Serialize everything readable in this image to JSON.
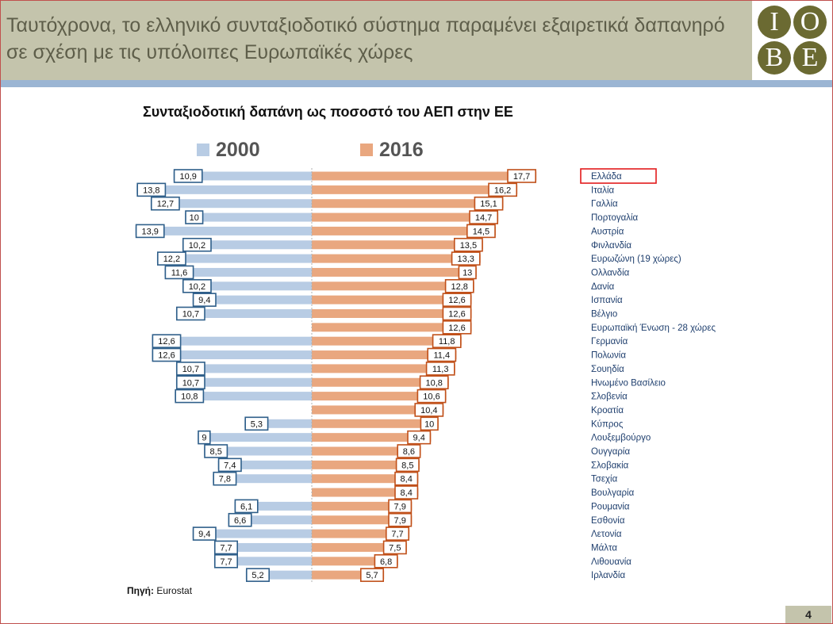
{
  "header": {
    "title": "Ταυτόχρονα, το ελληνικό συνταξιοδοτικό σύστημα παραμένει εξαιρετικά δαπανηρό σε σχέση με τις υπόλοιπες Ευρωπαϊκές χώρες",
    "logo_letters": [
      "I",
      "O",
      "B",
      "E"
    ]
  },
  "chart_data": {
    "type": "bar",
    "title": "Συνταξιοδοτική δαπάνη ως ποσοστό του ΑΕΠ στην ΕΕ",
    "categories": [
      "Ελλάδα",
      "Ιταλία",
      "Γαλλία",
      "Πορτογαλία",
      "Αυστρία",
      "Φινλανδία",
      "Ευρωζώνη (19 χώρες)",
      "Ολλανδία",
      "Δανία",
      "Ισπανία",
      "Βέλγιο",
      "Ευρωπαϊκή Ένωση - 28 χώρες",
      "Γερμανία",
      "Πολωνία",
      "Σουηδία",
      "Ηνωμένο Βασίλειο",
      "Σλοβενία",
      "Κροατία",
      "Κύπρος",
      "Λουξεμβούργο",
      "Ουγγαρία",
      "Σλοβακία",
      "Τσεχία",
      "Βουλγαρία",
      "Ρουμανία",
      "Εσθονία",
      "Λετονία",
      "Μάλτα",
      "Λιθουανία",
      "Ιρλανδία"
    ],
    "series": [
      {
        "name": "2000",
        "color": "#b8cce4",
        "values": [
          10.9,
          13.8,
          12.7,
          10,
          13.9,
          10.2,
          12.2,
          11.6,
          10.2,
          9.4,
          10.7,
          null,
          12.6,
          12.6,
          10.7,
          10.7,
          10.8,
          null,
          5.3,
          9,
          8.5,
          7.4,
          7.8,
          null,
          6.1,
          6.6,
          9.4,
          7.7,
          7.7,
          5.2
        ],
        "labels": [
          "10,9",
          "13,8",
          "12,7",
          "10",
          "13,9",
          "10,2",
          "12,2",
          "11,6",
          "10,2",
          "9,4",
          "10,7",
          "",
          "12,6",
          "12,6",
          "10,7",
          "10,7",
          "10,8",
          "",
          "5,3",
          "9",
          "8,5",
          "7,4",
          "7,8",
          "",
          "6,1",
          "6,6",
          "9,4",
          "7,7",
          "7,7",
          "5,2"
        ]
      },
      {
        "name": "2016",
        "color": "#e9a77f",
        "values": [
          17.7,
          16.2,
          15.1,
          14.7,
          14.5,
          13.5,
          13.3,
          13,
          12.8,
          12.6,
          12.6,
          12.6,
          11.8,
          11.4,
          11.3,
          10.8,
          10.6,
          10.4,
          10,
          9.4,
          8.6,
          8.5,
          8.4,
          8.4,
          7.9,
          7.9,
          7.7,
          7.5,
          6.8,
          5.7
        ],
        "labels": [
          "17,7",
          "16,2",
          "15,1",
          "14,7",
          "14,5",
          "13,5",
          "13,3",
          "13",
          "12,8",
          "12,6",
          "12,6",
          "12,6",
          "11,8",
          "11,4",
          "11,3",
          "10,8",
          "10,6",
          "10,4",
          "10",
          "9,4",
          "8,6",
          "8,5",
          "8,4",
          "8,4",
          "7,9",
          "7,9",
          "7,7",
          "7,5",
          "6,8",
          "5,7"
        ]
      }
    ],
    "highlighted_category": "Ελλάδα",
    "highlight_color": "#e31a1c",
    "label_border_2000": "#2f5f8a",
    "label_border_2016": "#c0501a",
    "legend_position": "top",
    "grid": false
  },
  "source": {
    "label": "Πηγή:",
    "text": "Eurostat"
  },
  "footer": {
    "page_number": "4"
  }
}
